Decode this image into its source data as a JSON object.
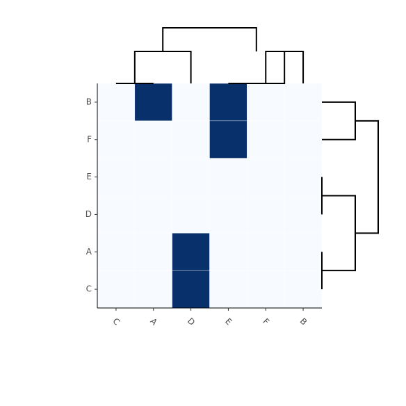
{
  "chart_data": {
    "type": "heatmap",
    "title": "",
    "xlabel": "",
    "ylabel": "",
    "columns": [
      "C",
      "A",
      "D",
      "E",
      "F",
      "B"
    ],
    "rows": [
      "B",
      "F",
      "E",
      "D",
      "A",
      "C"
    ],
    "values": [
      [
        0,
        1,
        0,
        1,
        0,
        0
      ],
      [
        0,
        0,
        0,
        1,
        0,
        0
      ],
      [
        0,
        0,
        0,
        0,
        0,
        0
      ],
      [
        0,
        0,
        0,
        0,
        0,
        0
      ],
      [
        0,
        0,
        1,
        0,
        0,
        0
      ],
      [
        0,
        0,
        1,
        0,
        0,
        0
      ]
    ],
    "colors": {
      "low": "#f7fbff",
      "high": "#08306b",
      "grid": "#ffffff",
      "dendrogram": "#000000"
    },
    "column_dendrogram": "((C,A),D),(E,(F,B))",
    "row_dendrogram": "((B,F),((E,D),(A,C)))",
    "legend": "none",
    "x_tick_rotation": 45
  }
}
